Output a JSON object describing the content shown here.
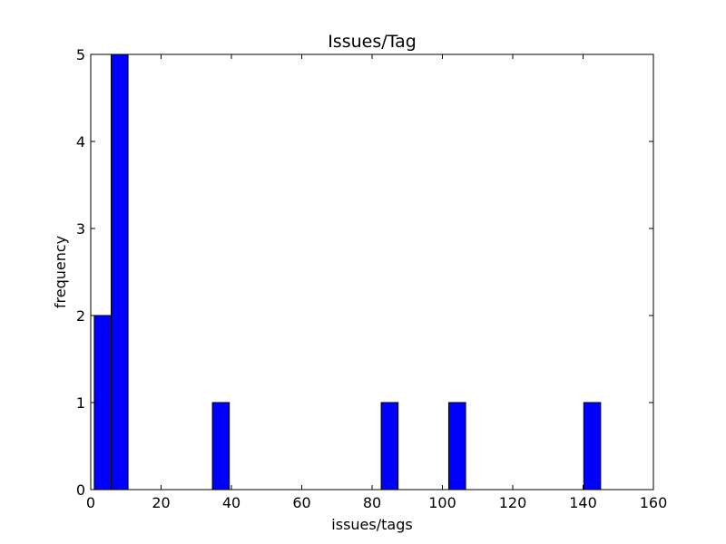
{
  "chart_data": {
    "type": "bar",
    "title": "Issues/Tag",
    "xlabel": "issues/tags",
    "ylabel": "frequency",
    "xlim": [
      0,
      160
    ],
    "ylim": [
      0,
      5
    ],
    "xticks": [
      "0",
      "20",
      "40",
      "60",
      "80",
      "100",
      "120",
      "140",
      "160"
    ],
    "yticks": [
      "0",
      "1",
      "2",
      "3",
      "4",
      "5"
    ],
    "bar_color": "#0000ff",
    "grid": false,
    "bins": [
      {
        "x0": 1,
        "x1": 5.8,
        "value": 2
      },
      {
        "x0": 5.8,
        "x1": 10.6,
        "value": 5
      },
      {
        "x0": 34.6,
        "x1": 39.4,
        "value": 1
      },
      {
        "x0": 82.6,
        "x1": 87.4,
        "value": 1
      },
      {
        "x0": 101.8,
        "x1": 106.6,
        "value": 1
      },
      {
        "x0": 140.2,
        "x1": 145,
        "value": 1
      }
    ]
  }
}
